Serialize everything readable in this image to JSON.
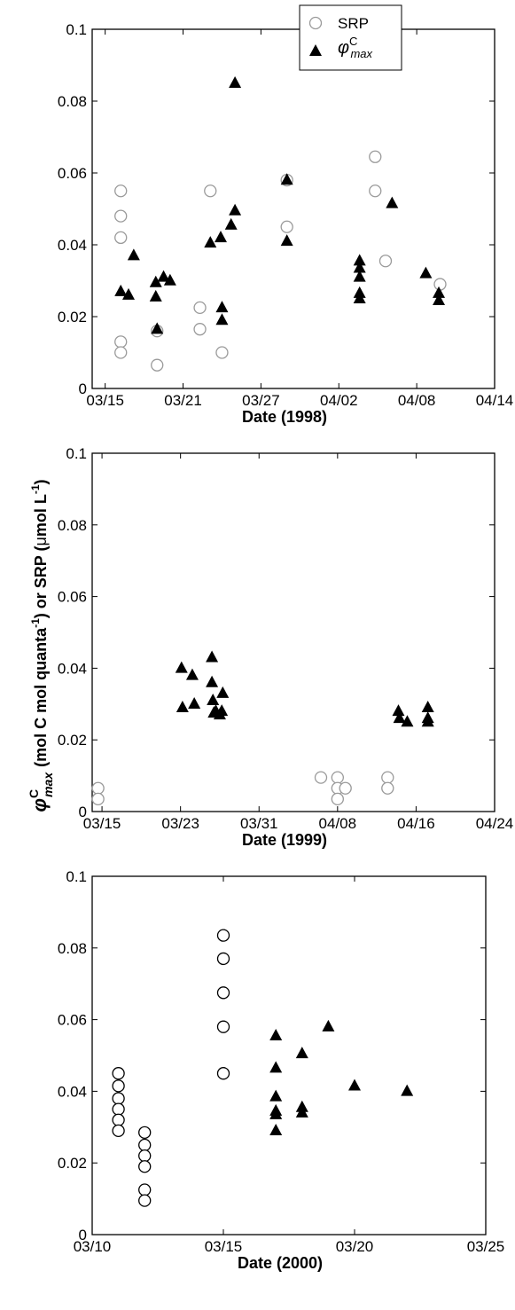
{
  "figure": {
    "ylabel_prefix": "(mol C mol quanta",
    "ylabel_exp1": "-1",
    "ylabel_mid": ") or SRP (",
    "ylabel_mu": "μ",
    "ylabel_unit": "mol L",
    "ylabel_exp2": "-1",
    "ylabel_close": ")",
    "phi_symbol": "φ",
    "phi_sup": "C",
    "phi_sub": "max"
  },
  "chart_data": [
    {
      "type": "scatter",
      "title": "",
      "xlabel": "Date (1998)",
      "ylabel": "φCmax (mol C mol quanta-1) or SRP (μmol L-1)",
      "x_unit": "day of March",
      "xlim": [
        14,
        45
      ],
      "ylim": [
        0,
        0.1
      ],
      "xticks": [
        15,
        21,
        27,
        33,
        39,
        45
      ],
      "xtick_labels": [
        "03/15",
        "03/21",
        "03/27",
        "04/02",
        "04/08",
        "04/14"
      ],
      "yticks": [
        0,
        0.02,
        0.04,
        0.06,
        0.08,
        0.1
      ],
      "ytick_labels": [
        "0",
        "0.02",
        "0.04",
        "0.06",
        "0.08",
        "0.1"
      ],
      "legend": {
        "position": "top-right",
        "entries": [
          "SRP",
          "φCmax"
        ]
      },
      "series": [
        {
          "name": "SRP",
          "marker": "circle",
          "color": "#9a9a9a",
          "x": [
            16.2,
            16.2,
            16.2,
            16.2,
            16.2,
            19,
            19,
            22.3,
            22.3,
            23.1,
            24,
            29,
            29,
            35.8,
            35.8,
            36.6,
            40.8
          ],
          "y": [
            0.055,
            0.048,
            0.042,
            0.013,
            0.01,
            0.016,
            0.0065,
            0.0225,
            0.0165,
            0.055,
            0.01,
            0.058,
            0.045,
            0.0645,
            0.055,
            0.0355,
            0.029
          ]
        },
        {
          "name": "φCmax",
          "marker": "triangle",
          "color": "#000000",
          "x": [
            16.2,
            16.8,
            17.2,
            18.9,
            18.9,
            19,
            19.5,
            20,
            23.1,
            23.9,
            24,
            24,
            24.7,
            25,
            25,
            29,
            29,
            34.6,
            34.6,
            34.6,
            34.6,
            34.6,
            37.1,
            39.7,
            40.7,
            40.7
          ],
          "y": [
            0.027,
            0.026,
            0.037,
            0.0295,
            0.0255,
            0.0165,
            0.031,
            0.03,
            0.0405,
            0.042,
            0.0225,
            0.019,
            0.0455,
            0.0495,
            0.085,
            0.058,
            0.041,
            0.0355,
            0.0335,
            0.031,
            0.0265,
            0.025,
            0.0515,
            0.032,
            0.0265,
            0.0245
          ]
        }
      ]
    },
    {
      "type": "scatter",
      "title": "",
      "xlabel": "Date (1999)",
      "ylabel": "φCmax (mol C mol quanta-1) or SRP (μmol L-1)",
      "x_unit": "day of March",
      "xlim": [
        14,
        55
      ],
      "ylim": [
        0,
        0.1
      ],
      "xticks": [
        15,
        23,
        31,
        39,
        47,
        55
      ],
      "xtick_labels": [
        "03/15",
        "03/23",
        "03/31",
        "04/08",
        "04/16",
        "04/24"
      ],
      "yticks": [
        0,
        0.02,
        0.04,
        0.06,
        0.08,
        0.1
      ],
      "ytick_labels": [
        "0",
        "0.02",
        "0.04",
        "0.06",
        "0.08",
        "0.1"
      ],
      "series": [
        {
          "name": "SRP",
          "marker": "circle",
          "color": "#9a9a9a",
          "x": [
            14.6,
            14.6,
            37.3,
            39,
            39,
            39,
            39.8,
            44.1,
            44.1
          ],
          "y": [
            0.0065,
            0.0035,
            0.0095,
            0.0095,
            0.0065,
            0.0035,
            0.0065,
            0.0095,
            0.0065
          ]
        },
        {
          "name": "φCmax",
          "marker": "triangle",
          "color": "#000000",
          "x": [
            23.1,
            23.2,
            24.2,
            24.4,
            26.2,
            26.2,
            26.3,
            26.4,
            26.6,
            27,
            27.3,
            27.2,
            45.2,
            45.3,
            46.1,
            48.2,
            48.2,
            48.2
          ],
          "y": [
            0.04,
            0.029,
            0.038,
            0.03,
            0.043,
            0.036,
            0.031,
            0.0275,
            0.028,
            0.027,
            0.033,
            0.028,
            0.028,
            0.026,
            0.025,
            0.029,
            0.026,
            0.025
          ]
        }
      ]
    },
    {
      "type": "scatter",
      "title": "",
      "xlabel": "Date (2000)",
      "ylabel": "φCmax (mol C mol quanta-1) or SRP (μmol L-1)",
      "x_unit": "day of March",
      "xlim": [
        10,
        25
      ],
      "ylim": [
        0,
        0.1
      ],
      "xticks": [
        10,
        15,
        20,
        25
      ],
      "xtick_labels": [
        "03/10",
        "03/15",
        "03/20",
        "03/25"
      ],
      "yticks": [
        0,
        0.02,
        0.04,
        0.06,
        0.08,
        0.1
      ],
      "ytick_labels": [
        "0",
        "0.02",
        "0.04",
        "0.06",
        "0.08",
        "0.1"
      ],
      "series": [
        {
          "name": "SRP",
          "marker": "circle",
          "color": "#000000",
          "x": [
            11,
            11,
            11,
            11,
            11,
            11,
            12,
            12,
            12,
            12,
            12,
            12,
            15,
            15,
            15,
            15,
            15
          ],
          "y": [
            0.045,
            0.0415,
            0.038,
            0.035,
            0.032,
            0.029,
            0.0285,
            0.025,
            0.022,
            0.019,
            0.0125,
            0.0095,
            0.0835,
            0.077,
            0.0675,
            0.058,
            0.045
          ]
        },
        {
          "name": "φCmax",
          "marker": "triangle",
          "color": "#000000",
          "x": [
            17,
            17,
            17,
            17,
            17,
            17,
            18,
            18,
            18,
            19,
            20,
            22
          ],
          "y": [
            0.0555,
            0.0465,
            0.0385,
            0.0345,
            0.0335,
            0.029,
            0.0505,
            0.0355,
            0.034,
            0.058,
            0.0415,
            0.04
          ]
        }
      ]
    }
  ]
}
